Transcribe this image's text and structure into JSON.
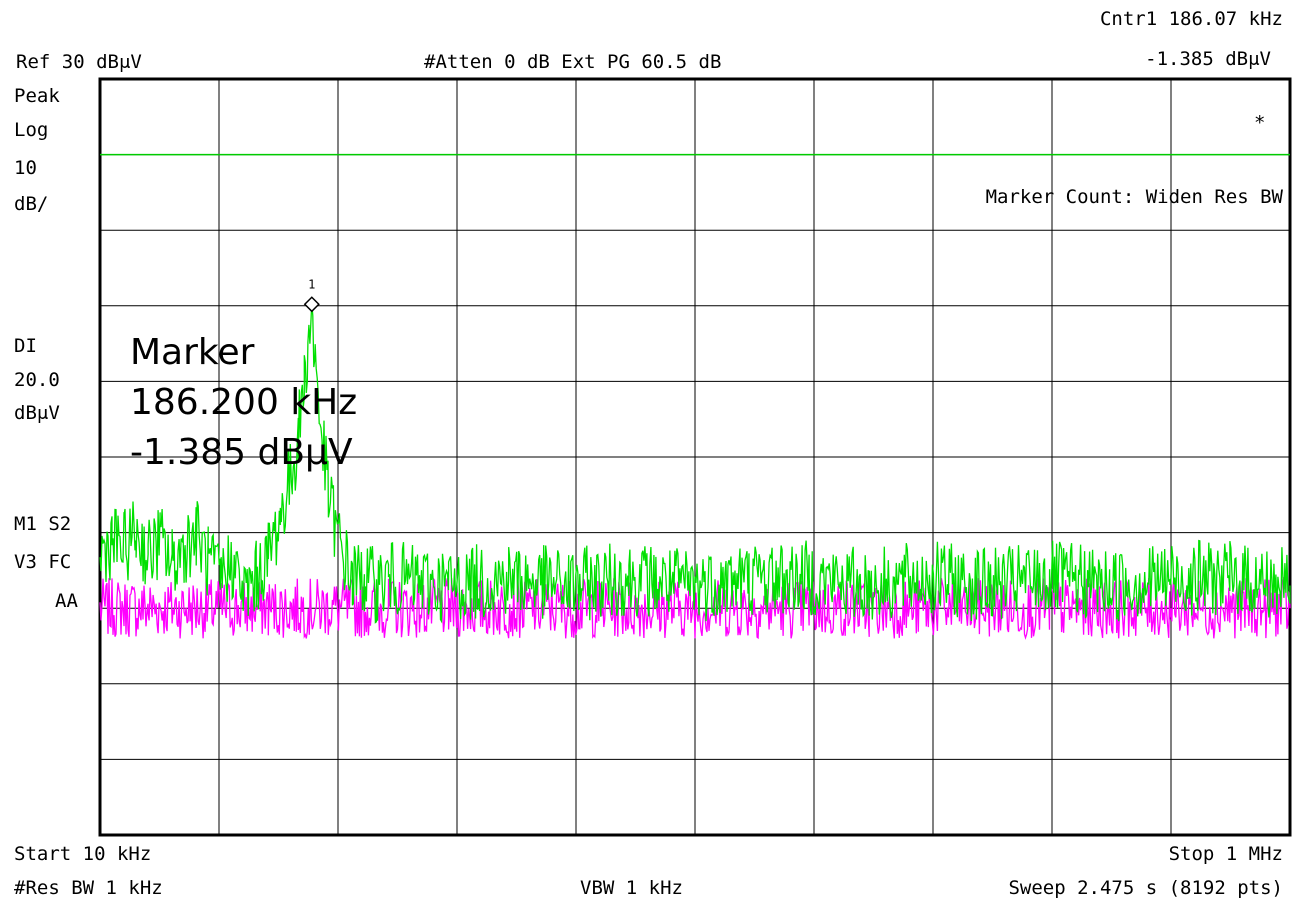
{
  "header": {
    "counter": "Cntr1  186.07 kHz",
    "counter_level": "-1.385 dBμV",
    "ref_level": "Ref 30 dBμV",
    "attenuation": "#Atten 0 dB  Ext PG 60.5 dB"
  },
  "left_panel": {
    "detector": "Peak",
    "scale_type": "Log",
    "scale_value": "10",
    "scale_unit": "dB/",
    "display_line_label": "DI",
    "display_line_value": "20.0",
    "display_line_unit": "dBμV",
    "trace_flags_1": "M1  S2",
    "trace_flags_2": "V3  FC",
    "trace_flags_3": "AA"
  },
  "annotations": {
    "asterisk": "*",
    "marker_count_note": "Marker Count: Widen Res BW",
    "marker_id": "1",
    "marker_title": "Marker",
    "marker_freq": "186.200 kHz",
    "marker_level": "-1.385 dBμV"
  },
  "footer": {
    "start": "Start 10 kHz",
    "stop": "Stop 1 MHz",
    "res_bw": "#Res BW 1 kHz",
    "vbw": "VBW 1 kHz",
    "sweep": "Sweep 2.475 s (8192 pts)"
  },
  "colors": {
    "trace_1": "#00e000",
    "trace_2": "#ff00ff",
    "display_line": "#00cc00",
    "grid": "#000000",
    "background": "#ffffff"
  },
  "chart_data": {
    "type": "line",
    "x_scale": "linear",
    "xlim": [
      10,
      1000
    ],
    "x_unit": "kHz",
    "ylim": [
      -70,
      30
    ],
    "y_unit": "dBμV",
    "grid": true,
    "grid_divisions": [
      10,
      10
    ],
    "display_line": 20.0,
    "marker": {
      "label": "1",
      "x": 186.2,
      "y": -1.385
    },
    "series": [
      {
        "x": [
          10,
          20,
          30,
          40,
          50,
          60,
          70,
          80,
          90,
          100,
          110,
          120,
          130,
          140,
          150,
          160,
          170,
          175,
          180,
          183,
          186.2,
          189,
          193,
          200,
          210,
          220,
          230,
          240,
          250,
          300,
          350,
          400,
          450,
          500,
          550,
          600,
          650,
          700,
          750,
          800,
          850,
          900,
          950,
          1000
        ],
        "values": [
          -33,
          -31,
          -32,
          -30,
          -33,
          -31,
          -34,
          -32,
          -30,
          -34,
          -36,
          -34,
          -38,
          -36,
          -33,
          -28,
          -22,
          -17,
          -10,
          -5,
          -1.385,
          -7,
          -15,
          -25,
          -32,
          -36,
          -36,
          -37,
          -36,
          -37,
          -36,
          -37,
          -36,
          -37,
          -36,
          -36,
          -37,
          -36,
          -37,
          -36,
          -37,
          -36,
          -36,
          -37
        ]
      },
      {
        "x": [
          10,
          50,
          100,
          150,
          200,
          250,
          300,
          350,
          400,
          450,
          500,
          550,
          600,
          650,
          700,
          750,
          800,
          850,
          900,
          950,
          1000
        ],
        "values": [
          -40,
          -40,
          -40,
          -40,
          -40,
          -40,
          -40,
          -40,
          -40,
          -40,
          -40,
          -40,
          -40,
          -40,
          -40,
          -40,
          -40,
          -40,
          -40,
          -40,
          -40
        ]
      }
    ]
  }
}
